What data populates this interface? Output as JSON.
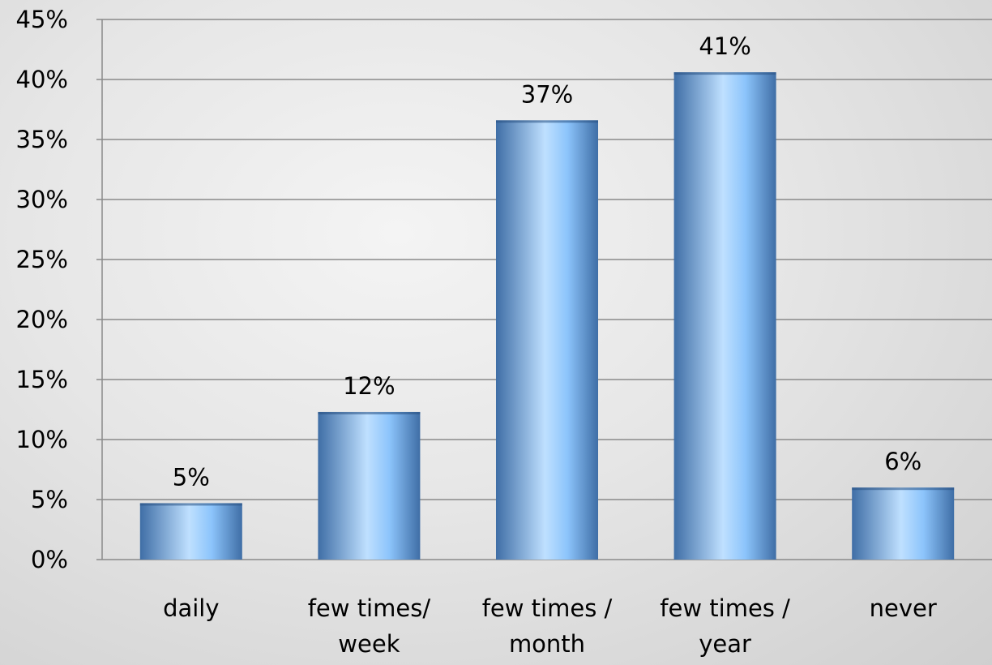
{
  "chart_data": {
    "type": "bar",
    "categories": [
      [
        "daily"
      ],
      [
        "few times/",
        "week"
      ],
      [
        "few times /",
        "month"
      ],
      [
        "few times /",
        "year"
      ],
      [
        "never"
      ]
    ],
    "values": [
      4.7,
      12.3,
      36.6,
      40.6,
      6.0
    ],
    "data_labels": [
      "5%",
      "12%",
      "37%",
      "41%",
      "6%"
    ],
    "yticks": [
      "0%",
      "5%",
      "10%",
      "15%",
      "20%",
      "25%",
      "30%",
      "35%",
      "40%",
      "45%"
    ],
    "ylim": [
      0,
      45
    ],
    "ytick_step": 5,
    "grid": true,
    "legend": false,
    "colors": {
      "bar_edge": "#3f6ea6",
      "bar_mid": "#bfe0ff",
      "bar_light": "#8cc4fb",
      "grid": "#8a8a8a",
      "axis": "#8a8a8a"
    }
  }
}
